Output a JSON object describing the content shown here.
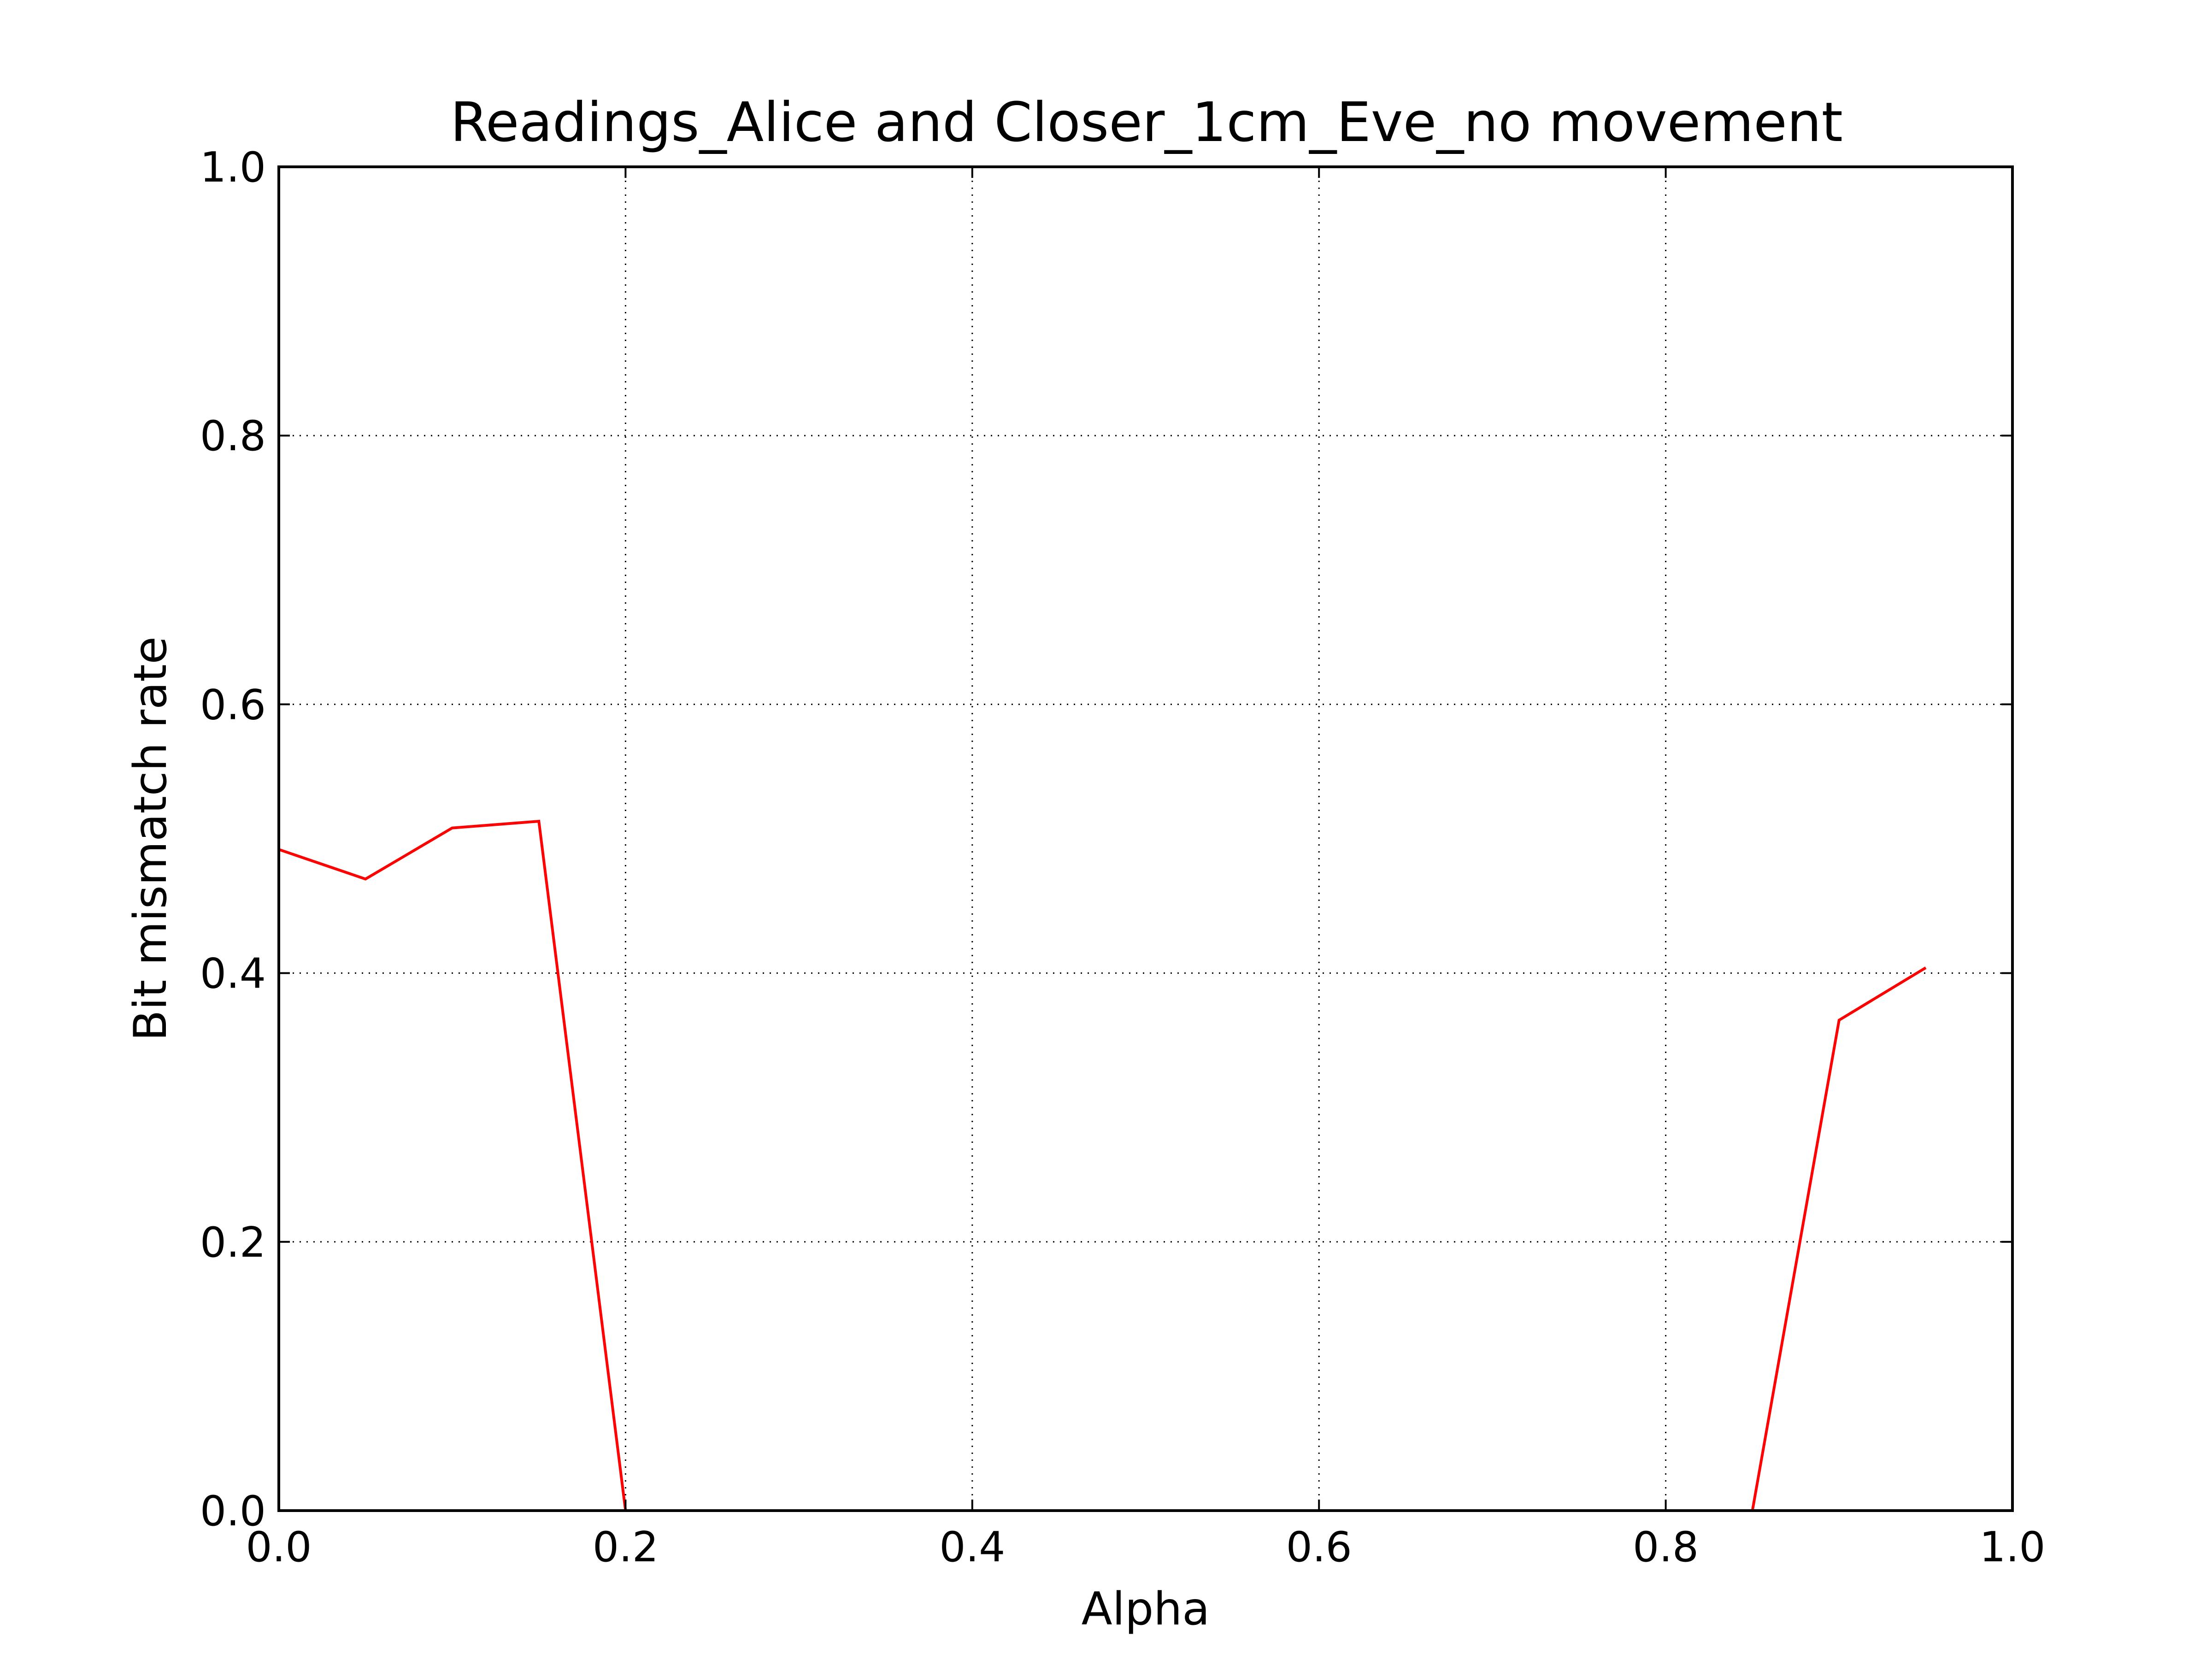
{
  "chart_data": {
    "type": "line",
    "title": "Readings_Alice and Closer_1cm_Eve_no movement",
    "xlabel": "Alpha",
    "ylabel": "Bit mismatch rate",
    "xlim": [
      0.0,
      1.0
    ],
    "ylim": [
      0.0,
      1.0
    ],
    "xticks": [
      "0.0",
      "0.2",
      "0.4",
      "0.6",
      "0.8",
      "1.0"
    ],
    "yticks": [
      "0.0",
      "0.2",
      "0.4",
      "0.6",
      "0.8",
      "1.0"
    ],
    "grid": true,
    "series": [
      {
        "color": "#ff0000",
        "x": [
          0.0,
          0.05,
          0.1,
          0.15,
          0.2,
          0.25,
          0.3,
          0.35,
          0.4,
          0.45,
          0.5,
          0.55,
          0.6,
          0.65,
          0.7,
          0.75,
          0.8,
          0.85,
          0.9,
          0.95
        ],
        "y": [
          0.492,
          0.47,
          0.508,
          0.513,
          0.0,
          0.0,
          0.0,
          0.0,
          0.0,
          0.0,
          0.0,
          0.0,
          0.0,
          0.0,
          0.0,
          0.0,
          0.0,
          0.0,
          0.365,
          0.404
        ]
      }
    ]
  }
}
